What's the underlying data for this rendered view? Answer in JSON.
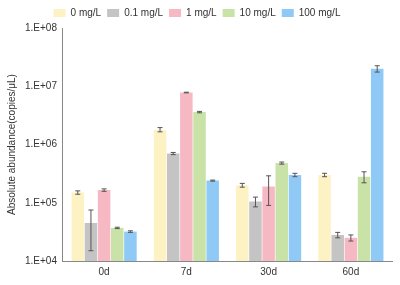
{
  "chart_data": {
    "type": "bar",
    "y_label": "Absolute abundance(copies/μL)",
    "categories": [
      "0d",
      "7d",
      "30d",
      "60d"
    ],
    "series": [
      {
        "name": "0 mg/L",
        "color": "#fdf2c4",
        "values": [
          150000,
          1800000,
          200000,
          300000
        ],
        "errors": [
          10000,
          150000,
          15000,
          20000
        ]
      },
      {
        "name": "0.1 mg/L",
        "color": "#c4c4c4",
        "values": [
          45000,
          700000,
          105000,
          28000
        ],
        "errors": [
          30000,
          30000,
          20000,
          3000
        ]
      },
      {
        "name": "1 mg/L",
        "color": "#f6b9c3",
        "values": [
          165000,
          7800000,
          190000,
          25000
        ],
        "errors": [
          8000,
          100000,
          100000,
          3000
        ]
      },
      {
        "name": "10 mg/L",
        "color": "#c8e2a8",
        "values": [
          37000,
          3600000,
          480000,
          280000
        ],
        "errors": [
          1000,
          100000,
          20000,
          60000
        ]
      },
      {
        "name": "100 mg/L",
        "color": "#8fc9f5",
        "values": [
          32000,
          240000,
          300000,
          20000000
        ],
        "errors": [
          1000,
          5000,
          20000,
          2500000
        ]
      }
    ],
    "log": "y",
    "ylim": [
      10000,
      100000000
    ],
    "yticks": [
      {
        "value": 10000,
        "label": "1.E+04"
      },
      {
        "value": 100000,
        "label": "1.E+05"
      },
      {
        "value": 1000000,
        "label": "1.E+06"
      },
      {
        "value": 10000000,
        "label": "1.E+07"
      },
      {
        "value": 100000000,
        "label": "1.E+08"
      }
    ],
    "grid": false,
    "legend": "top"
  }
}
